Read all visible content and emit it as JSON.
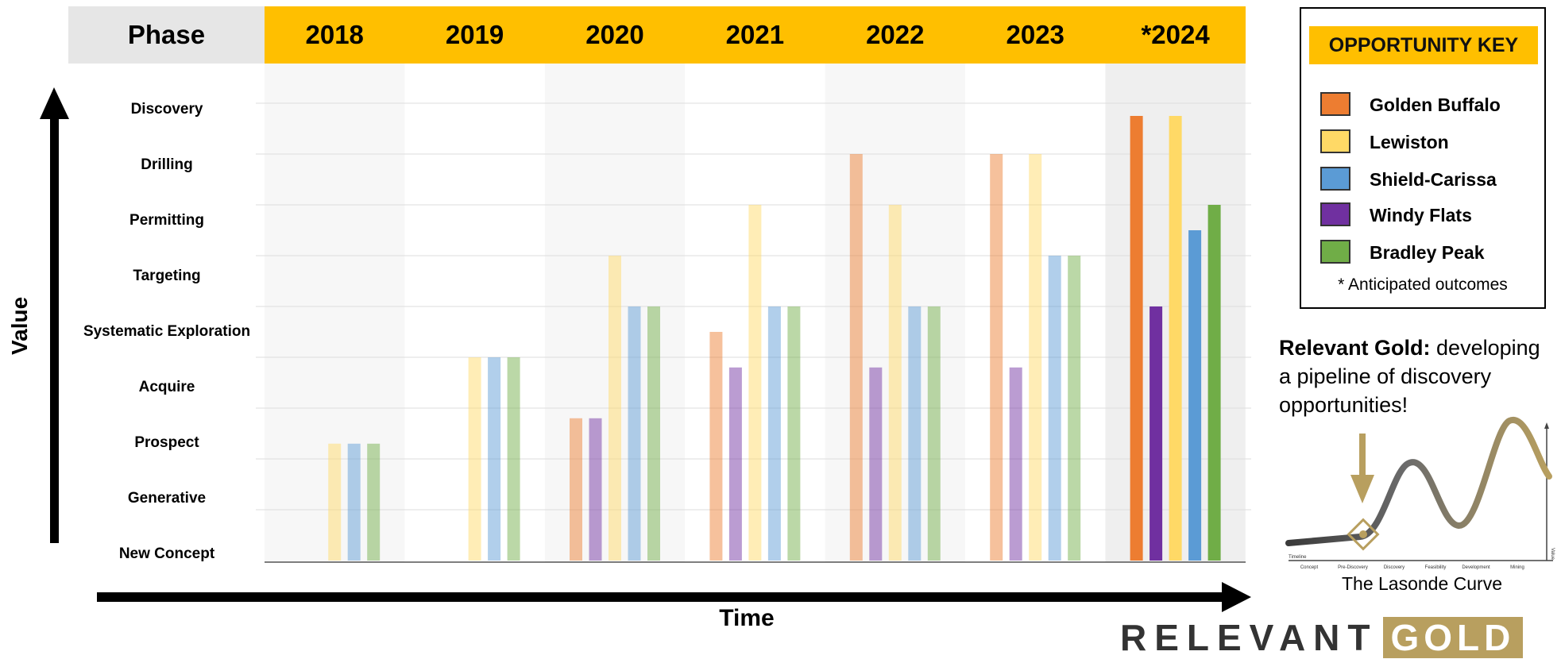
{
  "header": {
    "phase_label": "Phase",
    "years": [
      "2018",
      "2019",
      "2020",
      "2021",
      "2022",
      "2023",
      "*2024"
    ]
  },
  "chart_data": {
    "type": "bar",
    "categories": [
      "2018",
      "2019",
      "2020",
      "2021",
      "2022",
      "2023",
      "*2024"
    ],
    "y_categories": [
      "New Concept",
      "Generative",
      "Prospect",
      "Acquire",
      "Systematic Exploration",
      "Targeting",
      "Permitting",
      "Drilling",
      "Discovery"
    ],
    "ylabel": "Value",
    "xlabel": "Time",
    "series": [
      {
        "name": "Golden Buffalo",
        "color": "#ed7d31",
        "values": [
          null,
          null,
          2.8,
          4.5,
          8.0,
          8.0,
          8.75
        ]
      },
      {
        "name": "Windy Flats",
        "color": "#7030a0",
        "values": [
          null,
          null,
          2.8,
          3.8,
          3.8,
          3.8,
          5.0
        ]
      },
      {
        "name": "Lewiston",
        "color": "#ffd966",
        "values": [
          2.3,
          4.0,
          6.0,
          7.0,
          7.0,
          8.0,
          8.75
        ]
      },
      {
        "name": "Shield-Carissa",
        "color": "#5b9bd5",
        "values": [
          2.3,
          4.0,
          5.0,
          5.0,
          5.0,
          6.0,
          6.5
        ]
      },
      {
        "name": "Bradley Peak",
        "color": "#70ad47",
        "values": [
          2.3,
          4.0,
          5.0,
          5.0,
          5.0,
          6.0,
          7.0
        ]
      }
    ],
    "anticipated_category": "*2024",
    "grid": true
  },
  "key": {
    "title": "OPPORTUNITY KEY",
    "items": [
      {
        "label": "Golden Buffalo",
        "color": "#ed7d31"
      },
      {
        "label": "Lewiston",
        "color": "#ffd966"
      },
      {
        "label": "Shield-Carissa",
        "color": "#5b9bd5"
      },
      {
        "label": "Windy Flats",
        "color": "#7030a0"
      },
      {
        "label": "Bradley Peak",
        "color": "#70ad47"
      }
    ],
    "note": "* Anticipated outcomes"
  },
  "relevant_gold": {
    "bold": "Relevant Gold:",
    "text": " developing a pipeline of discovery opportunities!"
  },
  "lasonde": {
    "title": "The Lasonde Curve",
    "axis_left": "Timeline",
    "axis_right": "Value",
    "stages": [
      "Concept",
      "Pre-Discovery",
      "Discovery",
      "Feasibility",
      "Development",
      "Mining"
    ]
  },
  "logo": {
    "word1": "RELEVANT",
    "word2": "GOLD"
  }
}
